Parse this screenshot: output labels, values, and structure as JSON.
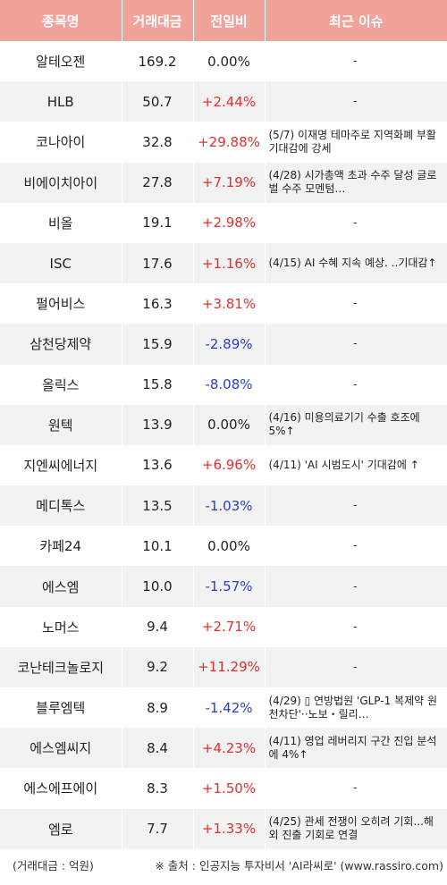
{
  "headers": {
    "name": "종목명",
    "volume": "거래대금",
    "change": "전일비",
    "issue": "최근 이슈"
  },
  "rows": [
    {
      "name": "알테오젠",
      "volume": "169.2",
      "change": "0.00%",
      "dir": "flat",
      "issue": "-"
    },
    {
      "name": "HLB",
      "volume": "50.7",
      "change": "+2.44%",
      "dir": "up",
      "issue": "-"
    },
    {
      "name": "코나아이",
      "volume": "32.8",
      "change": "+29.88%",
      "dir": "up",
      "issue": "(5/7) 이재명 테마주로 지역화폐 부활 기대감에 강세"
    },
    {
      "name": "비에이치아이",
      "volume": "27.8",
      "change": "+7.19%",
      "dir": "up",
      "issue": "(4/28) 시가총액 초과 수주 달성 글로벌 수주 모멘텀…"
    },
    {
      "name": "비올",
      "volume": "19.1",
      "change": "+2.98%",
      "dir": "up",
      "issue": "-"
    },
    {
      "name": "ISC",
      "volume": "17.6",
      "change": "+1.16%",
      "dir": "up",
      "issue": "(4/15) AI 수혜 지속 예상. ..기대감↑"
    },
    {
      "name": "펄어비스",
      "volume": "16.3",
      "change": "+3.81%",
      "dir": "up",
      "issue": "-"
    },
    {
      "name": "삼천당제약",
      "volume": "15.9",
      "change": "-2.89%",
      "dir": "down",
      "issue": "-"
    },
    {
      "name": "올릭스",
      "volume": "15.8",
      "change": "-8.08%",
      "dir": "down",
      "issue": "-"
    },
    {
      "name": "원텍",
      "volume": "13.9",
      "change": "0.00%",
      "dir": "flat",
      "issue": "(4/16) 미용의료기기 수출 호조에 5%↑"
    },
    {
      "name": "지엔씨에너지",
      "volume": "13.6",
      "change": "+6.96%",
      "dir": "up",
      "issue": "(4/11) 'AI 시범도시' 기대감에 ↑"
    },
    {
      "name": "메디톡스",
      "volume": "13.5",
      "change": "-1.03%",
      "dir": "down",
      "issue": "-"
    },
    {
      "name": "카페24",
      "volume": "10.1",
      "change": "0.00%",
      "dir": "flat",
      "issue": "-"
    },
    {
      "name": "에스엠",
      "volume": "10.0",
      "change": "-1.57%",
      "dir": "down",
      "issue": "-"
    },
    {
      "name": "노머스",
      "volume": "9.4",
      "change": "+2.71%",
      "dir": "up",
      "issue": "-"
    },
    {
      "name": "코난테크놀로지",
      "volume": "9.2",
      "change": "+11.29%",
      "dir": "up",
      "issue": "-"
    },
    {
      "name": "블루엠텍",
      "volume": "8.9",
      "change": "-1.42%",
      "dir": "down",
      "issue": "(4/29) ▯ 연방법원 'GLP-1 복제약 원천차단'··노보・릴리…"
    },
    {
      "name": "에스엠씨지",
      "volume": "8.4",
      "change": "+4.23%",
      "dir": "up",
      "issue": "(4/11) 영업 레버리지 구간 진입 분석에 4%↑"
    },
    {
      "name": "에스에프에이",
      "volume": "8.3",
      "change": "+1.50%",
      "dir": "up",
      "issue": "-"
    },
    {
      "name": "엠로",
      "volume": "7.7",
      "change": "+1.33%",
      "dir": "up",
      "issue": "(4/25) 관세 전쟁이 오히려 기회...해외 진출 기회로 연결"
    }
  ],
  "footer": {
    "unit": "(거래대금 : 억원)",
    "source": "※ 출처 : 인공지능 투자비서 'AI라씨로' (www.rassiro.com)"
  },
  "colors": {
    "header_bg": "#f1a39a",
    "up": "#e03030",
    "down": "#2a3ec8",
    "stripe": "#f2f2f2"
  }
}
